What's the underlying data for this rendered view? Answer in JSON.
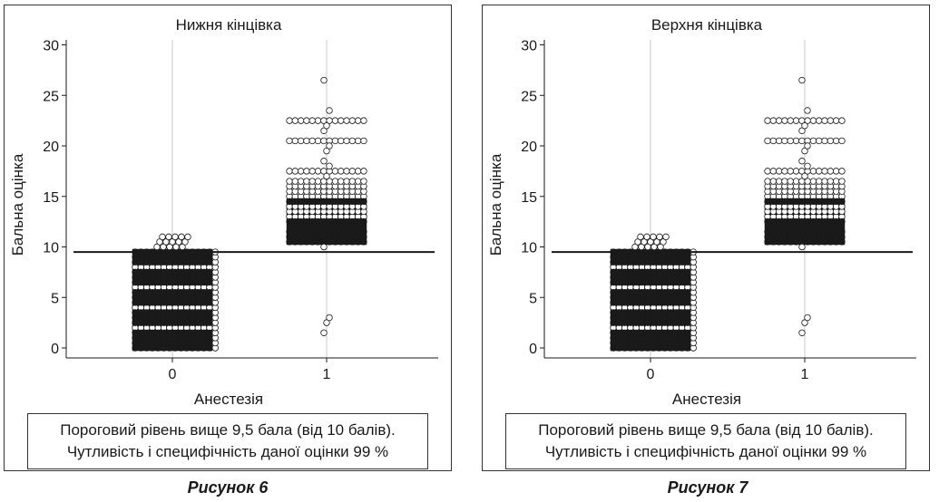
{
  "chart_data": [
    {
      "type": "scatter",
      "title": "Нижня кінцівка",
      "xlabel": "Анестезія",
      "ylabel": "Бальна оцінка",
      "categories": [
        "0",
        "1"
      ],
      "yticks": [
        "0",
        "5",
        "10",
        "15",
        "20",
        "25",
        "30"
      ],
      "ylim": [
        0,
        30
      ],
      "threshold": 9.5,
      "grid": "vertical at categories",
      "series": [
        {
          "x": "0",
          "solid_range": [
            0,
            9.5
          ],
          "solid_rows": [
            0,
            0.5,
            1,
            1.5,
            2.5,
            3,
            3.5,
            4.5,
            5,
            5.5,
            6.5,
            7,
            7.5,
            8.5,
            9,
            9.5
          ],
          "open_rows": [
            2,
            4,
            6,
            8
          ],
          "outliers": [
            10,
            10.5,
            11
          ]
        },
        {
          "x": "1",
          "solid_range": [
            10.5,
            14.5
          ],
          "solid_rows": [
            10.5,
            11,
            11.5,
            12.5,
            14.5
          ],
          "open_rows": [
            13,
            13.5,
            14,
            15,
            15.5,
            16,
            16.5,
            17.5,
            20.5,
            22.5
          ],
          "outliers": [
            1.5,
            2.5,
            3,
            10,
            17,
            18,
            18.5,
            19.5,
            20,
            21.5,
            22,
            23.5,
            26.5
          ]
        }
      ]
    },
    {
      "type": "scatter",
      "title": "Верхня кінцівка",
      "xlabel": "Анестезія",
      "ylabel": "Бальна оцінка",
      "categories": [
        "0",
        "1"
      ],
      "yticks": [
        "0",
        "5",
        "10",
        "15",
        "20",
        "25",
        "30"
      ],
      "ylim": [
        0,
        30
      ],
      "threshold": 9.5,
      "grid": "vertical at categories",
      "series": [
        {
          "x": "0",
          "solid_range": [
            0,
            9.5
          ],
          "solid_rows": [
            0,
            0.5,
            1,
            1.5,
            2.5,
            3,
            3.5,
            4.5,
            5,
            5.5,
            6.5,
            7,
            7.5,
            8.5,
            9,
            9.5
          ],
          "open_rows": [
            2,
            4,
            6,
            8
          ],
          "outliers": [
            10,
            10.5,
            11
          ]
        },
        {
          "x": "1",
          "solid_range": [
            10.5,
            14.5
          ],
          "solid_rows": [
            10.5,
            11,
            11.5,
            12.5,
            14.5
          ],
          "open_rows": [
            13,
            13.5,
            14,
            15,
            15.5,
            16,
            16.5,
            17.5,
            20.5,
            22.5
          ],
          "outliers": [
            1.5,
            2.5,
            3,
            10,
            17,
            18,
            18.5,
            19.5,
            20,
            21.5,
            22,
            23.5,
            26.5
          ]
        }
      ]
    }
  ],
  "figures": [
    {
      "note_line1": "Пороговий рівень вище 9,5 бала (від 10 балів).",
      "note_line2": "Чутливість і специфічність даної оцінки 99 %",
      "caption": "Рисунок 6"
    },
    {
      "note_line1": "Пороговий рівень вище 9,5 бала (від 10 балів).",
      "note_line2": "Чутливість і специфічність даної оцінки 99 %",
      "caption": "Рисунок 7"
    }
  ],
  "colors": {
    "ink": "#1a1a1a",
    "grid": "#c8c8c8",
    "open_fill": "#ffffff"
  }
}
